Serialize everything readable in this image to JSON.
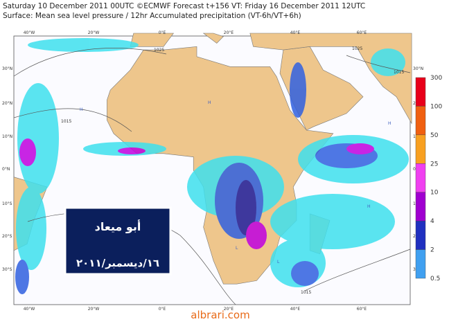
{
  "header": {
    "line1": "Saturday 10 December 2011 00UTC ©ECMWF Forecast t+156 VT: Friday 16 December 2011 12UTC",
    "line2": "Surface: Mean sea level pressure / 12hr Accumulated precipitation (VT-6h/VT+6h)"
  },
  "map": {
    "lon_labels": [
      "40°W",
      "20°W",
      "0°E",
      "20°E",
      "40°E",
      "60°E"
    ],
    "lat_labels": [
      "30°N",
      "20°N",
      "10°N",
      "0°N",
      "10°S",
      "20°S",
      "30°S"
    ],
    "contour_labels": [
      "1025",
      "1015",
      "1015",
      "1025",
      "1015"
    ],
    "pressure_marks": [
      "H",
      "H",
      "L",
      "H",
      "L",
      "H"
    ]
  },
  "legend": {
    "levels": [
      300,
      100,
      50,
      25,
      10,
      4,
      2,
      0.5
    ]
  },
  "watermark": {
    "name": "أبو ميعاد",
    "date": "١٦/ديسمبر/٢٠١١"
  },
  "footer": "albrari.com"
}
